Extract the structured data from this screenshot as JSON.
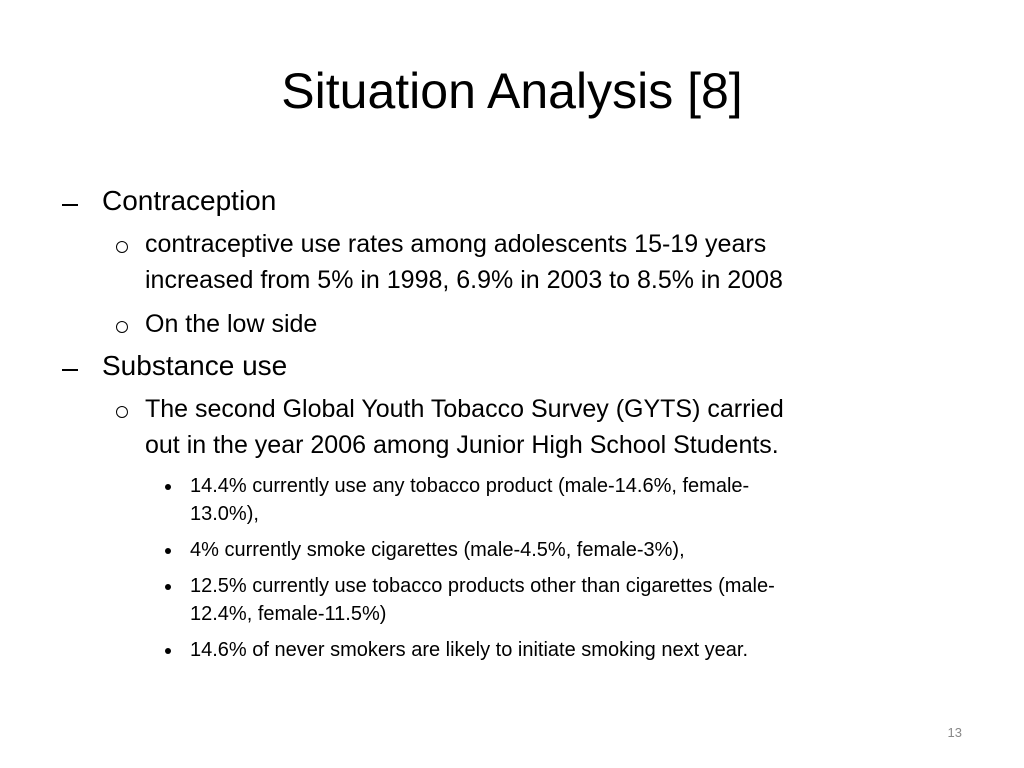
{
  "title": "Situation Analysis [8]",
  "items": [
    {
      "text": "Contraception",
      "subitems": [
        {
          "lines": [
            "contraceptive use rates among adolescents 15-19 years",
            "increased from 5% in 1998, 6.9% in 2003 to 8.5% in 2008"
          ],
          "subitems": []
        },
        {
          "lines": [
            "On the low side"
          ],
          "subitems": []
        }
      ]
    },
    {
      "text": "Substance use",
      "subitems": [
        {
          "lines": [
            "The second Global Youth Tobacco Survey (GYTS) carried",
            "out in the year 2006 among Junior High School Students."
          ],
          "subitems": [
            {
              "lines": [
                "14.4% currently use any tobacco product  (male-14.6%, female-",
                "13.0%),"
              ]
            },
            {
              "lines": [
                "4% currently smoke cigarettes (male-4.5%, female-3%),"
              ]
            },
            {
              "lines": [
                "12.5% currently use tobacco products other than cigarettes (male-",
                "12.4%, female-11.5%)"
              ]
            },
            {
              "lines": [
                "14.6% of never smokers are likely to initiate smoking next year."
              ]
            }
          ]
        }
      ]
    }
  ],
  "page_number": "13"
}
